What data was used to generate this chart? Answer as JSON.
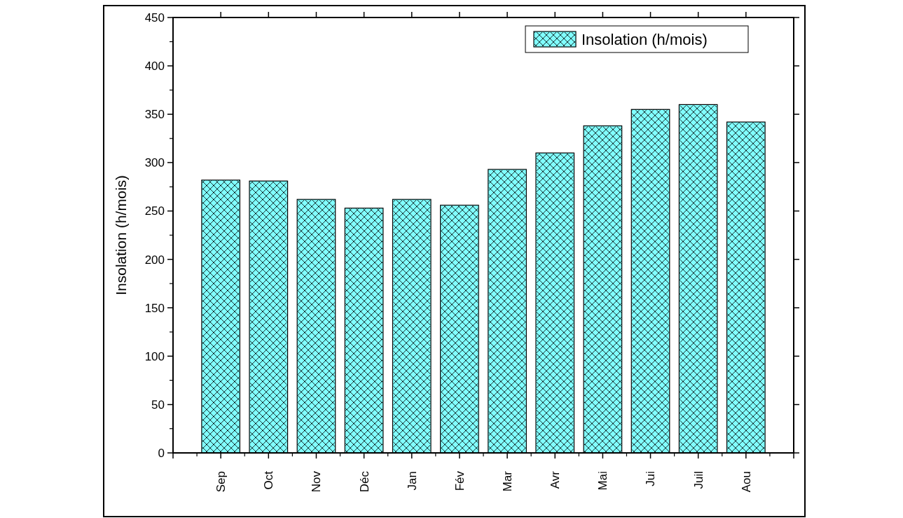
{
  "chart_data": {
    "type": "bar",
    "ylabel": "Insolation (h/mois)",
    "categories": [
      "Sep",
      "Oct",
      "Nov",
      "Déc",
      "Jan",
      "Fév",
      "Mar",
      "Avr",
      "Mai",
      "Jui",
      "Juil",
      "Aou"
    ],
    "series": [
      {
        "name": "Insolation (h/mois)",
        "color": "#80ffff",
        "values": [
          282,
          281,
          262,
          253,
          262,
          256,
          293,
          310,
          338,
          355,
          360,
          342
        ]
      }
    ],
    "ylim": [
      0,
      450
    ],
    "yticks": [
      0,
      50,
      100,
      150,
      200,
      250,
      300,
      350,
      400,
      450
    ],
    "grid": false,
    "legend": "top right"
  }
}
